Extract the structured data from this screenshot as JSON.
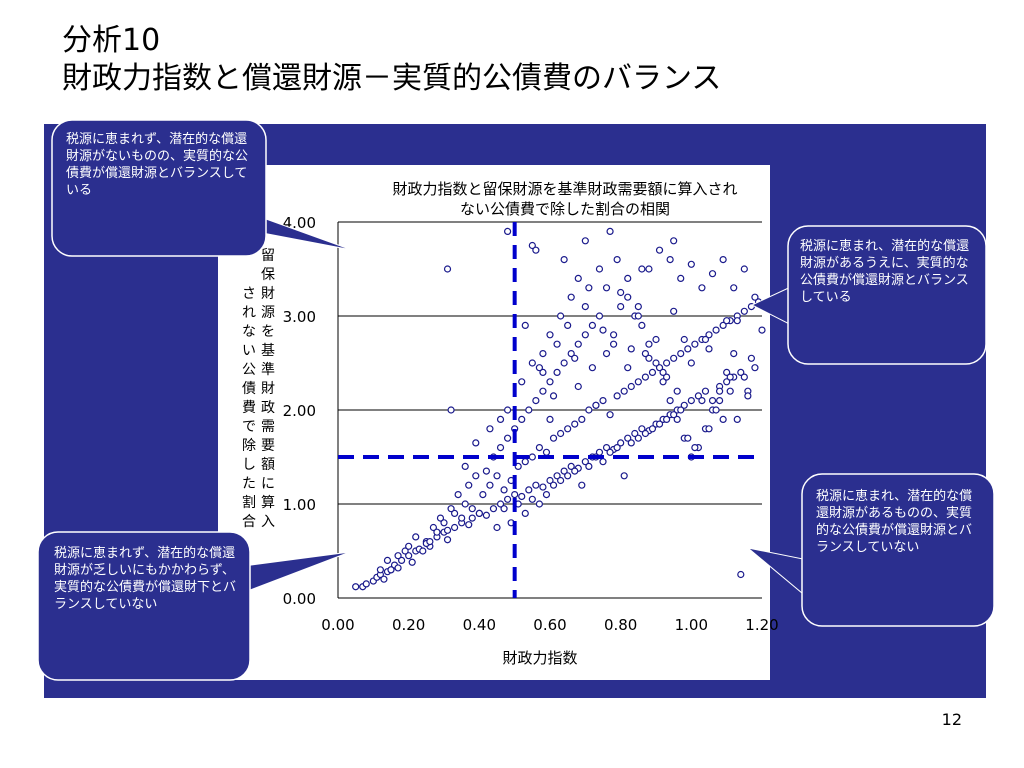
{
  "slide": {
    "title_line1": "分析10",
    "title_line2": "財政力指数と償還財源－実質的公債費のバランス",
    "page_number": "12",
    "panel_color": "#2b2f8f"
  },
  "callouts": {
    "top_left": "税源に恵まれず、潜在的な償還財源がないものの、実質的な公債費が償還財源とバランスしている",
    "top_right": "税源に恵まれ、潜在的な償還財源があるうえに、実質的な公債費が償還財源とバランスしている",
    "bottom_left": "税源に恵まれず、潜在的な償還財源が乏しいにもかかわらず、実質的な公債費が償還財下とバランスしていない",
    "bottom_right": "税源に恵まれ、潜在的な償還財源があるものの、実質的な公債費が償還財源とバランスしていない"
  },
  "chart_data": {
    "type": "scatter",
    "title_line1": "財政力指数と留保財源を基準財政需要額に算入され",
    "title_line2": "ない公債費で除した割合の相関",
    "xlabel": "財政力指数",
    "ylabel": "留保財源を基準財政需要額に算入されない公債費で除した割合",
    "xlim": [
      0.0,
      1.2
    ],
    "ylim": [
      0.0,
      4.0
    ],
    "x_ticks": [
      "0.00",
      "0.20",
      "0.40",
      "0.60",
      "0.80",
      "1.00",
      "1.20"
    ],
    "y_ticks": [
      "0.00",
      "1.00",
      "2.00",
      "3.00",
      "4.00"
    ],
    "grid": "horizontal",
    "marker_color": "#1a1a8c",
    "reference_lines": {
      "x": 0.5,
      "y": 1.5,
      "color": "#0000cc"
    },
    "x": [
      0.05,
      0.07,
      0.08,
      0.1,
      0.11,
      0.12,
      0.13,
      0.14,
      0.15,
      0.16,
      0.17,
      0.18,
      0.2,
      0.21,
      0.22,
      0.23,
      0.25,
      0.26,
      0.28,
      0.3,
      0.31,
      0.33,
      0.35,
      0.37,
      0.38,
      0.4,
      0.42,
      0.44,
      0.46,
      0.48,
      0.5,
      0.52,
      0.54,
      0.56,
      0.58,
      0.6,
      0.62,
      0.64,
      0.66,
      0.68,
      0.7,
      0.72,
      0.74,
      0.76,
      0.78,
      0.8,
      0.82,
      0.84,
      0.86,
      0.88,
      0.9,
      0.92,
      0.94,
      0.96,
      0.98,
      1.0,
      1.02,
      1.04,
      1.06,
      1.08,
      1.1,
      1.12,
      1.14,
      1.16,
      1.18,
      0.12,
      0.14,
      0.19,
      0.2,
      0.25,
      0.3,
      0.31,
      0.33,
      0.36,
      0.38,
      0.41,
      0.43,
      0.45,
      0.47,
      0.49,
      0.51,
      0.53,
      0.55,
      0.57,
      0.59,
      0.61,
      0.63,
      0.65,
      0.67,
      0.69,
      0.71,
      0.73,
      0.75,
      0.77,
      0.79,
      0.81,
      0.83,
      0.85,
      0.87,
      0.89,
      0.91,
      0.93,
      0.95,
      0.97,
      0.99,
      1.01,
      1.03,
      1.05,
      1.07,
      1.09,
      1.11,
      1.13,
      1.15,
      1.17,
      1.19,
      0.22,
      0.27,
      0.29,
      0.32,
      0.34,
      0.37,
      0.39,
      0.42,
      0.44,
      0.46,
      0.48,
      0.5,
      0.52,
      0.54,
      0.56,
      0.58,
      0.6,
      0.62,
      0.64,
      0.66,
      0.68,
      0.7,
      0.72,
      0.74,
      0.76,
      0.78,
      0.8,
      0.82,
      0.84,
      0.86,
      0.88,
      0.9,
      0.92,
      0.94,
      0.96,
      0.98,
      1.0,
      1.02,
      1.04,
      1.06,
      1.08,
      1.1,
      1.12,
      1.14,
      0.15,
      0.17,
      0.24,
      0.26,
      0.28,
      0.35,
      0.4,
      0.45,
      0.47,
      0.49,
      0.51,
      0.53,
      0.55,
      0.57,
      0.59,
      0.61,
      0.63,
      0.65,
      0.67,
      0.69,
      0.71,
      0.73,
      0.75,
      0.77,
      0.79,
      0.81,
      0.83,
      0.85,
      0.87,
      0.89,
      0.91,
      0.93,
      0.95,
      0.97,
      0.99,
      1.01,
      1.03,
      1.05,
      1.07,
      1.09,
      1.11,
      1.13,
      0.32,
      0.36,
      0.39,
      0.43,
      0.46,
      0.48,
      0.52,
      0.55,
      0.58,
      0.6,
      0.63,
      0.66,
      0.68,
      0.71,
      0.74,
      0.76,
      0.79,
      0.82,
      0.85,
      0.88,
      0.91,
      0.94,
      0.97,
      1.0,
      1.03,
      1.06,
      1.09,
      1.12,
      1.15,
      1.18,
      0.55,
      0.58,
      0.62,
      0.65,
      0.7,
      0.75,
      0.8,
      0.85,
      0.9,
      0.95,
      1.0,
      1.05,
      1.1,
      1.15,
      1.2,
      0.57,
      0.61,
      0.67,
      0.72,
      0.78,
      0.83,
      0.88,
      0.93,
      0.98,
      1.08,
      1.13,
      1.17,
      0.53,
      0.6,
      0.68,
      0.73,
      0.82,
      0.87,
      0.92,
      0.96,
      1.04,
      1.11,
      1.16,
      0.31,
      0.48,
      0.56,
      0.64,
      0.7,
      0.77,
      0.86,
      0.95
    ],
    "y": [
      0.12,
      0.12,
      0.15,
      0.18,
      0.22,
      0.25,
      0.2,
      0.28,
      0.3,
      0.35,
      0.32,
      0.4,
      0.45,
      0.38,
      0.5,
      0.52,
      0.6,
      0.55,
      0.65,
      0.7,
      0.62,
      0.75,
      0.8,
      0.78,
      0.85,
      0.9,
      0.88,
      0.95,
      1.0,
      1.05,
      1.1,
      1.08,
      1.15,
      1.2,
      1.18,
      1.25,
      1.3,
      1.35,
      1.4,
      1.38,
      1.45,
      1.5,
      1.55,
      1.6,
      1.58,
      1.65,
      1.7,
      1.75,
      1.8,
      1.78,
      1.85,
      1.9,
      1.95,
      2.0,
      2.05,
      2.1,
      2.15,
      2.2,
      2.1,
      2.25,
      2.3,
      2.35,
      2.4,
      2.2,
      2.45,
      0.3,
      0.4,
      0.5,
      0.55,
      0.58,
      0.8,
      0.72,
      0.9,
      1.0,
      0.95,
      1.1,
      1.2,
      1.3,
      1.15,
      1.25,
      1.4,
      1.45,
      1.5,
      1.6,
      1.55,
      1.7,
      1.75,
      1.8,
      1.85,
      1.9,
      2.0,
      2.05,
      2.1,
      1.95,
      2.15,
      2.2,
      2.25,
      2.3,
      2.35,
      2.4,
      2.45,
      2.5,
      2.55,
      2.6,
      2.65,
      2.7,
      2.75,
      2.8,
      2.85,
      2.9,
      2.95,
      3.0,
      3.05,
      3.1,
      3.15,
      0.65,
      0.75,
      0.85,
      0.95,
      1.1,
      1.2,
      1.3,
      1.35,
      1.5,
      1.6,
      1.7,
      1.8,
      1.9,
      2.0,
      2.1,
      2.2,
      2.3,
      2.4,
      2.5,
      2.6,
      2.7,
      2.8,
      2.9,
      3.0,
      2.6,
      2.8,
      3.1,
      3.2,
      3.0,
      2.9,
      2.7,
      2.5,
      2.3,
      2.1,
      1.9,
      1.7,
      1.5,
      1.6,
      1.8,
      2.0,
      2.2,
      2.4,
      2.6,
      0.25,
      0.3,
      0.45,
      0.5,
      0.6,
      0.7,
      0.85,
      0.9,
      0.75,
      0.95,
      0.8,
      1.0,
      0.9,
      1.05,
      1.0,
      1.1,
      1.2,
      1.25,
      1.3,
      1.35,
      1.2,
      1.4,
      1.5,
      1.45,
      1.55,
      1.6,
      1.3,
      1.65,
      1.7,
      1.75,
      1.8,
      1.85,
      1.9,
      1.95,
      2.0,
      1.7,
      1.6,
      2.1,
      1.8,
      2.0,
      1.9,
      2.2,
      1.9,
      2.0,
      1.4,
      1.65,
      1.8,
      1.9,
      2.0,
      2.3,
      2.5,
      2.6,
      2.8,
      3.0,
      3.2,
      3.4,
      3.3,
      3.5,
      3.3,
      3.6,
      3.4,
      3.1,
      3.5,
      3.7,
      3.6,
      3.4,
      3.55,
      3.3,
      3.45,
      3.6,
      3.3,
      3.5,
      3.2,
      3.75,
      2.4,
      2.7,
      2.9,
      3.1,
      2.85,
      3.25,
      3.0,
      2.75,
      3.05,
      2.5,
      2.65,
      2.95,
      2.35,
      2.85,
      2.45,
      2.15,
      2.55,
      2.45,
      2.7,
      2.65,
      2.55,
      2.35,
      2.75,
      2.1,
      2.95,
      2.55,
      2.9,
      1.9,
      2.25,
      2.05,
      2.45,
      2.6,
      2.4,
      2.2,
      2.75,
      2.35,
      2.15,
      3.5,
      3.9,
      3.7,
      3.6,
      3.8,
      3.9,
      3.5,
      3.8
    ]
  }
}
